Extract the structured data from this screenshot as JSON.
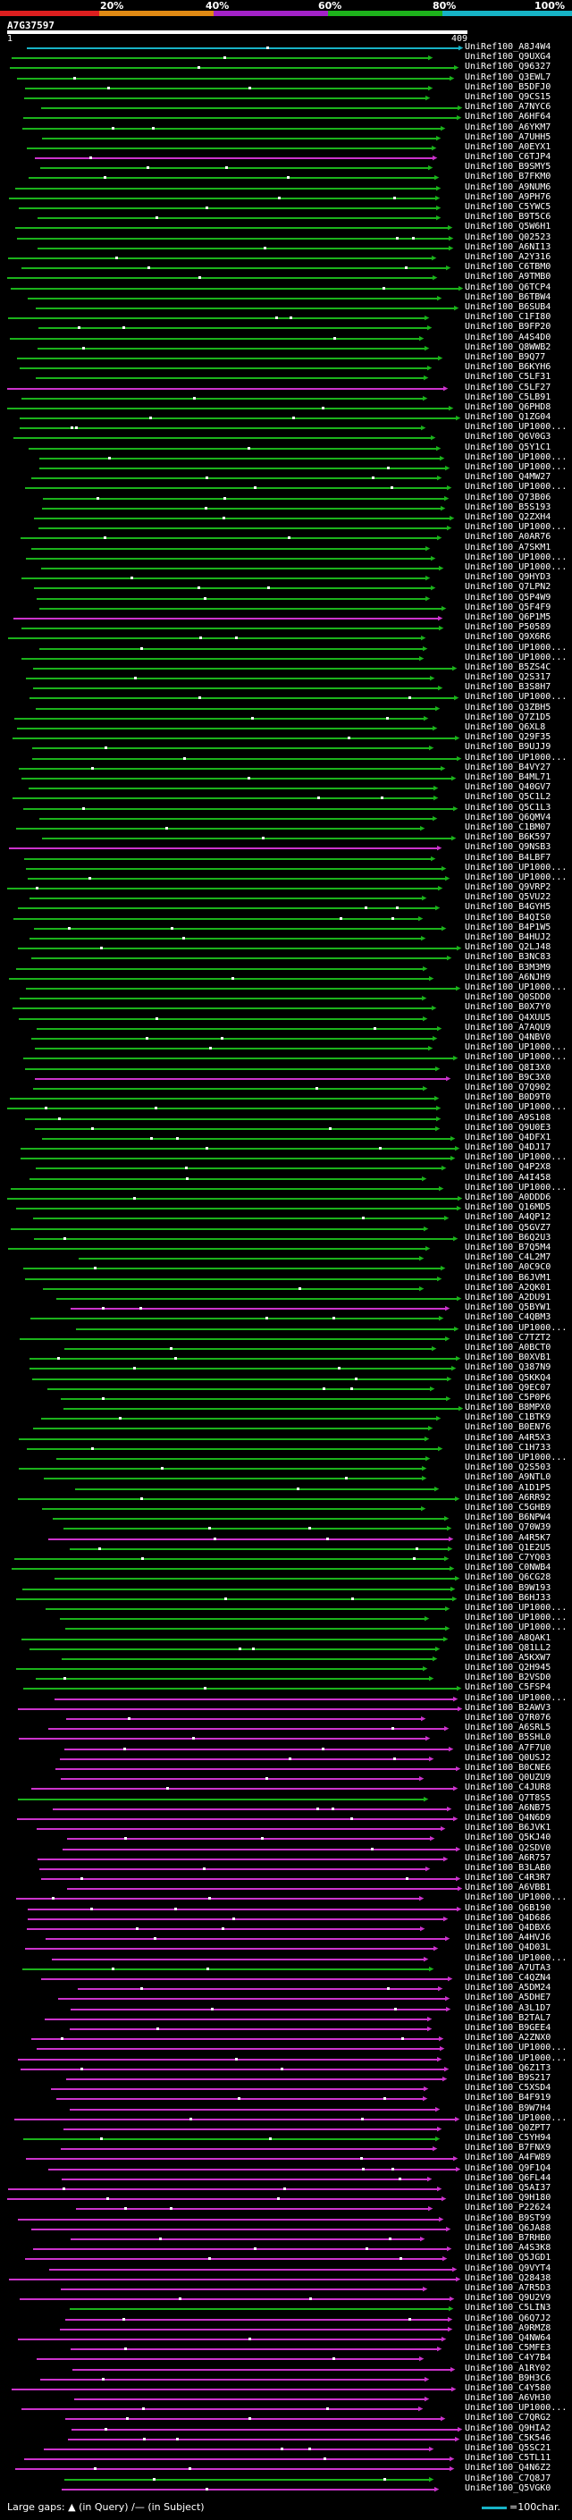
{
  "header": {
    "percent_ticks": [
      "20%",
      "40%",
      "60%",
      "80%",
      "100%"
    ],
    "query_name": "A7G37597",
    "ruler_start": "1",
    "ruler_end": "409"
  },
  "colors": {
    "top": "#17b3c6",
    "green": "#1bb31b",
    "magenta": "#cc33cc",
    "bar_red": "#dd1f1f",
    "bar_orange": "#e08a14",
    "bar_purple": "#a322c8",
    "bar_green": "#1db21b",
    "bar_cyan": "#16b3c6"
  },
  "hits": [
    "UniRef100_A8J4W4",
    "UniRef100_Q9UXG4",
    "UniRef100_Q96327",
    "UniRef100_Q3EWL7",
    "UniRef100_B5DFJ0",
    "UniRef100_Q9CS15",
    "UniRef100_A7NYC6",
    "UniRef100_A6HF64",
    "UniRef100_A6YKM7",
    "UniRef100_A7UHH5",
    "UniRef100_A0EYX1",
    "UniRef100_C6TJP4",
    "UniRef100_B9SMY5",
    "UniRef100_B7FKM0",
    "UniRef100_A9NUM6",
    "UniRef100_A9PH76",
    "UniRef100_C5YWC5",
    "UniRef100_B9T5C6",
    "UniRef100_Q5W6H1",
    "UniRef100_Q02523",
    "UniRef100_A6NI13",
    "UniRef100_A2Y316",
    "UniRef100_C6TBM0",
    "UniRef100_A9TMB0",
    "UniRef100_Q6TCP4",
    "UniRef100_B6TBW4",
    "UniRef100_B6SUB4",
    "UniRef100_C1FI80",
    "UniRef100_B9FP20",
    "UniRef100_A4S4D0",
    "UniRef100_Q8WWB2",
    "UniRef100_B9Q77",
    "UniRef100_B6KYH6",
    "UniRef100_C5LF31",
    "UniRef100_C5LF27",
    "UniRef100_C5LB91",
    "UniRef100_Q6PHD8",
    "UniRef100_Q1ZG04",
    "UniRef100_UP1000...",
    "UniRef100_Q6V0G3",
    "UniRef100_Q5Y1C1",
    "UniRef100_UP1000...",
    "UniRef100_UP1000...",
    "UniRef100_Q4MW27",
    "UniRef100_UP1000...",
    "UniRef100_Q73B06",
    "UniRef100_B5S193",
    "UniRef100_Q2ZXH4",
    "UniRef100_UP1000...",
    "UniRef100_A0AR76",
    "UniRef100_A7SKM1",
    "UniRef100_UP1000...",
    "UniRef100_UP1000...",
    "UniRef100_Q9HYD3",
    "UniRef100_Q7LPN2",
    "UniRef100_Q5P4W9",
    "UniRef100_Q5F4F9",
    "UniRef100_Q6P1M5",
    "UniRef100_P50589",
    "UniRef100_Q9X6R6",
    "UniRef100_UP1000...",
    "UniRef100_UP1000...",
    "UniRef100_B5ZS4C",
    "UniRef100_Q2S317",
    "UniRef100_B3S8H7",
    "UniRef100_UP1000...",
    "UniRef100_Q3ZBH5",
    "UniRef100_Q7Z1D5",
    "UniRef100_Q6XL8",
    "UniRef100_Q29F35",
    "UniRef100_B9UJJ9",
    "UniRef100_UP1000...",
    "UniRef100_B4VY27",
    "UniRef100_B4ML71",
    "UniRef100_Q40GV7",
    "UniRef100_Q5C1L2",
    "UniRef100_Q5C1L3",
    "UniRef100_Q6QMV4",
    "UniRef100_C1BM07",
    "UniRef100_B6K597",
    "UniRef100_Q9NSB3",
    "UniRef100_B4LBF7",
    "UniRef100_UP1000...",
    "UniRef100_UP1000...",
    "UniRef100_Q9VRP2",
    "UniRef100_Q5VU22",
    "UniRef100_B4GYH5",
    "UniRef100_B4QIS0",
    "UniRef100_B4P1W5",
    "UniRef100_B4HUJ2",
    "UniRef100_Q2LJ48",
    "UniRef100_B3NC83",
    "UniRef100_B3M3M9",
    "UniRef100_A6NJH9",
    "UniRef100_UP1000...",
    "UniRef100_Q0SDD0",
    "UniRef100_B0X7Y0",
    "UniRef100_Q4XUU5",
    "UniRef100_A7AQU9",
    "UniRef100_Q4NBV0",
    "UniRef100_UP1000...",
    "UniRef100_UP1000...",
    "UniRef100_Q8I3X0",
    "UniRef100_B9C3X0",
    "UniRef100_Q7Q902",
    "UniRef100_B0D9T0",
    "UniRef100_UP1000...",
    "UniRef100_A9S108",
    "UniRef100_Q9U0E3",
    "UniRef100_Q4DFX1",
    "UniRef100_Q4DJ17",
    "UniRef100_UP1000...",
    "UniRef100_Q4P2X8",
    "UniRef100_A4I458",
    "UniRef100_UP1000...",
    "UniRef100_A0DDD6",
    "UniRef100_Q16MD5",
    "UniRef100_A4QP12",
    "UniRef100_Q5GVZ7",
    "UniRef100_B6Q2U3",
    "UniRef100_B7Q5M4",
    "UniRef100_C4L2M7",
    "UniRef100_A0C9C0",
    "UniRef100_B6JVM1",
    "UniRef100_A2QK01",
    "UniRef100_A2DU91",
    "UniRef100_Q5BYW1",
    "UniRef100_C4QBM3",
    "UniRef100_UP1000...",
    "UniRef100_C7TZT2",
    "UniRef100_A0BCT0",
    "UniRef100_B0XVB1",
    "UniRef100_Q387N9",
    "UniRef100_Q5KKQ4",
    "UniRef100_Q9EC07",
    "UniRef100_C5P0P6",
    "UniRef100_B8MPX0",
    "UniRef100_C1BTK9",
    "UniRef100_B0EN76",
    "UniRef100_A4R5X3",
    "UniRef100_C1H733",
    "UniRef100_UP1000...",
    "UniRef100_Q2S503",
    "UniRef100_A9NTL0",
    "UniRef100_A1D1P5",
    "UniRef100_A6RR92",
    "UniRef100_C5GHB9",
    "UniRef100_B6NPW4",
    "UniRef100_Q70W39",
    "UniRef100_A4R5K7",
    "UniRef100_Q1E2U5",
    "UniRef100_C7YQ03",
    "UniRef100_C0NWB4",
    "UniRef100_Q6CG28",
    "UniRef100_B9W193",
    "UniRef100_B6HJ33",
    "UniRef100_UP1000...",
    "UniRef100_UP1000...",
    "UniRef100_UP1000...",
    "UniRef100_A8QAK1",
    "UniRef100_Q81LL2",
    "UniRef100_A5KXW7",
    "UniRef100_Q2H945",
    "UniRef100_B2VSD0",
    "UniRef100_C5FSP4",
    "UniRef100_UP1000...",
    "UniRef100_B2AWV3",
    "UniRef100_Q7R076",
    "UniRef100_A6SRL5",
    "UniRef100_B5SHL0",
    "UniRef100_A7F7U0",
    "UniRef100_Q0USJ2",
    "UniRef100_B0CNE6",
    "UniRef100_Q0UZU9",
    "UniRef100_C4JUR8",
    "UniRef100_Q7T8S5",
    "UniRef100_A6NB75",
    "UniRef100_Q4N6D9",
    "UniRef100_B6JVK1",
    "UniRef100_Q5KJ40",
    "UniRef100_Q2SDV0",
    "UniRef100_A6R757",
    "UniRef100_B3LAB0",
    "UniRef100_C4R3R7",
    "UniRef100_A6VBB1",
    "UniRef100_UP1000...",
    "UniRef100_Q6B190",
    "UniRef100_Q4D686",
    "UniRef100_Q4DBX6",
    "UniRef100_A4HVJ6",
    "UniRef100_Q4D03L",
    "UniRef100_UP1000...",
    "UniRef100_A7UTA3",
    "UniRef100_C4QZN4",
    "UniRef100_A5DM24",
    "UniRef100_A5DHE7",
    "UniRef100_A3L1D7",
    "UniRef100_B2TAL7",
    "UniRef100_B9GEE4",
    "UniRef100_A2ZNX0",
    "UniRef100_UP1000...",
    "UniRef100_UP1000...",
    "UniRef100_Q6Z1T3",
    "UniRef100_B9S217",
    "UniRef100_C5XSD4",
    "UniRef100_B4F919",
    "UniRef100_B9W7H4",
    "UniRef100_UP1000...",
    "UniRef100_Q0ZPT7",
    "UniRef100_C5YH94",
    "UniRef100_B7FNX9",
    "UniRef100_A4FW89",
    "UniRef100_Q9F1Q4",
    "UniRef100_Q6FL44",
    "UniRef100_Q5AI37",
    "UniRef100_Q9H180",
    "UniRef100_P22624",
    "UniRef100_B9ST99",
    "UniRef100_Q6JA88",
    "UniRef100_B7RHB0",
    "UniRef100_A4S3K8",
    "UniRef100_Q5JGD1",
    "UniRef100_Q9VYT4",
    "UniRef100_Q28438",
    "UniRef100_A7R5D3",
    "UniRef100_Q9U2V9",
    "UniRef100_C5LIN3",
    "UniRef100_Q6Q7J2",
    "UniRef100_A9RMZ8",
    "UniRef100_Q4NW64",
    "UniRef100_C5MFE3",
    "UniRef100_C4Y7B4",
    "UniRef100_A1RY02",
    "UniRef100_B9H3C6",
    "UniRef100_C4Y580",
    "UniRef100_A6VH30",
    "UniRef100_UP1000...",
    "UniRef100_C7QRG2",
    "UniRef100_Q9HIA2",
    "UniRef100_C5K546",
    "UniRef100_Q5SC21",
    "UniRef100_C5TL11",
    "UniRef100_Q4N6Z2",
    "UniRef100_C7Q8J7",
    "UniRef100_Q5VGK0"
  ],
  "legend": {
    "gaps_label": "Large gaps:",
    "gaps_in_query": "(in Query)",
    "gaps_separator": "/—",
    "gaps_in_subject": "(in Subject)",
    "scale_label": "=100char."
  }
}
